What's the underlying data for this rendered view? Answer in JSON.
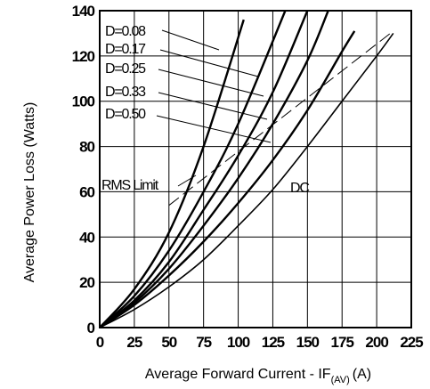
{
  "chart_data": {
    "type": "line",
    "title": "",
    "xlabel": {
      "main": "Average Forward Current - IF",
      "subscript": "(AV)",
      "unit": "(A)"
    },
    "ylabel": "Average Power Loss (Watts)",
    "xlim": [
      0,
      225
    ],
    "ylim": [
      0,
      140
    ],
    "x_ticks": [
      0,
      25,
      50,
      75,
      100,
      125,
      150,
      175,
      200,
      225
    ],
    "y_ticks": [
      0,
      20,
      40,
      60,
      80,
      100,
      120,
      140
    ],
    "grid": true,
    "series": [
      {
        "name": "D=0.08",
        "x": [
          0,
          25,
          50,
          75,
          104
        ],
        "y": [
          0,
          17,
          42,
          80,
          136
        ]
      },
      {
        "name": "D=0.17",
        "x": [
          0,
          25,
          50,
          75,
          100,
          134
        ],
        "y": [
          0,
          14,
          34,
          60,
          90,
          140
        ]
      },
      {
        "name": "D=0.25",
        "x": [
          0,
          25,
          50,
          75,
          100,
          125,
          150
        ],
        "y": [
          0,
          12,
          29,
          52,
          76,
          104,
          140
        ]
      },
      {
        "name": "D=0.33",
        "x": [
          0,
          25,
          50,
          75,
          100,
          125,
          150,
          165
        ],
        "y": [
          0,
          11,
          26,
          45,
          66,
          90,
          118,
          140
        ]
      },
      {
        "name": "D=0.50",
        "x": [
          0,
          25,
          50,
          75,
          100,
          125,
          150,
          175,
          184
        ],
        "y": [
          0,
          10,
          23,
          38,
          55,
          74,
          96,
          122,
          131
        ]
      },
      {
        "name": "DC",
        "x": [
          0,
          25,
          50,
          75,
          100,
          125,
          150,
          175,
          200,
          212
        ],
        "y": [
          0,
          8,
          18,
          30,
          45,
          61,
          80,
          100,
          120,
          130
        ]
      }
    ],
    "rms_limit": {
      "name": "RMS Limit",
      "x": [
        50,
        212
      ],
      "y": [
        54,
        131
      ]
    },
    "annotations": [
      "D=0.08",
      "D=0.17",
      "D=0.25",
      "D=0.33",
      "D=0.50",
      "RMS Limit",
      "DC"
    ]
  }
}
